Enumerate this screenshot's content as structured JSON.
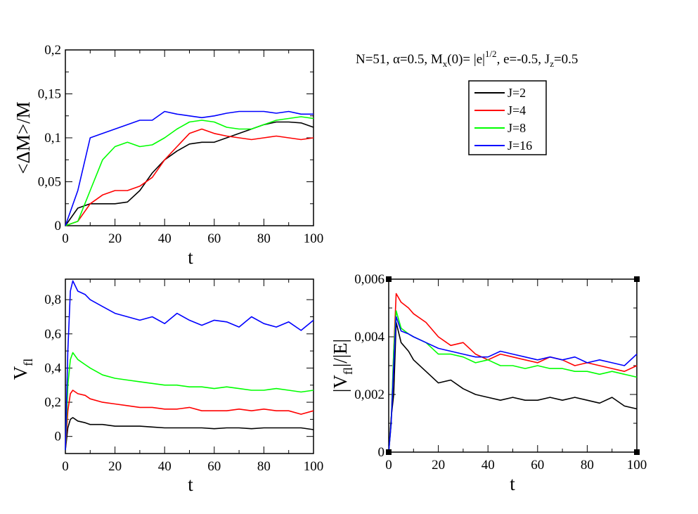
{
  "params_text": {
    "a": "N=51, ",
    "alpha": "α",
    "b": "=0.5, M",
    "sub_x": "x",
    "c": "(0)= |e|",
    "sup_half": "1/2",
    "d": ", e=-0.5, J",
    "sub_z": "z",
    "e": "=0.5"
  },
  "legend": [
    "J=2",
    "J=4",
    "J=8",
    "J=16"
  ],
  "colors": {
    "J2": "#000000",
    "J4": "#ff0000",
    "J8": "#00ff00",
    "J16": "#0000ff"
  },
  "chart_data": [
    {
      "type": "line",
      "xlabel": "t",
      "ylabel": "<ΔM>/M",
      "xlim": [
        0,
        100
      ],
      "ylim": [
        0,
        0.2
      ],
      "xticks": [
        "0",
        "20",
        "40",
        "60",
        "80",
        "100"
      ],
      "yticks": [
        "0",
        "0,05",
        "0,1",
        "0,15",
        "0,2"
      ],
      "x": [
        0,
        5,
        10,
        15,
        20,
        25,
        30,
        35,
        40,
        45,
        50,
        55,
        60,
        65,
        70,
        75,
        80,
        85,
        90,
        95,
        100
      ],
      "series": [
        {
          "name": "J=2",
          "values": [
            0,
            0.02,
            0.025,
            0.025,
            0.025,
            0.027,
            0.04,
            0.06,
            0.075,
            0.085,
            0.093,
            0.095,
            0.095,
            0.1,
            0.105,
            0.11,
            0.115,
            0.118,
            0.118,
            0.117,
            0.112
          ]
        },
        {
          "name": "J=4",
          "values": [
            0,
            0.005,
            0.025,
            0.035,
            0.04,
            0.04,
            0.045,
            0.055,
            0.075,
            0.09,
            0.105,
            0.11,
            0.105,
            0.102,
            0.1,
            0.098,
            0.1,
            0.102,
            0.1,
            0.098,
            0.1
          ]
        },
        {
          "name": "J=8",
          "values": [
            0,
            0.005,
            0.04,
            0.075,
            0.09,
            0.095,
            0.09,
            0.092,
            0.1,
            0.11,
            0.118,
            0.12,
            0.118,
            0.112,
            0.11,
            0.11,
            0.115,
            0.12,
            0.122,
            0.124,
            0.122
          ]
        },
        {
          "name": "J=16",
          "values": [
            0,
            0.04,
            0.1,
            0.105,
            0.11,
            0.115,
            0.12,
            0.12,
            0.13,
            0.127,
            0.125,
            0.123,
            0.125,
            0.128,
            0.13,
            0.13,
            0.13,
            0.128,
            0.13,
            0.127,
            0.127
          ]
        }
      ]
    },
    {
      "type": "line",
      "xlabel": "t",
      "ylabel": "V_fl",
      "xlim": [
        0,
        100
      ],
      "ylim": [
        -0.1,
        0.92
      ],
      "xticks": [
        "0",
        "20",
        "40",
        "60",
        "80",
        "100"
      ],
      "yticks": [
        "0",
        "0,2",
        "0,4",
        "0,6",
        "0,8"
      ],
      "x": [
        0,
        1,
        2,
        3,
        5,
        8,
        10,
        15,
        20,
        25,
        30,
        35,
        40,
        45,
        50,
        55,
        60,
        65,
        70,
        75,
        80,
        85,
        90,
        95,
        100
      ],
      "series": [
        {
          "name": "J=2",
          "values": [
            -0.08,
            0.05,
            0.1,
            0.11,
            0.09,
            0.08,
            0.07,
            0.07,
            0.06,
            0.06,
            0.06,
            0.055,
            0.05,
            0.05,
            0.05,
            0.05,
            0.045,
            0.05,
            0.05,
            0.045,
            0.05,
            0.05,
            0.05,
            0.05,
            0.04
          ]
        },
        {
          "name": "J=4",
          "values": [
            -0.08,
            0.15,
            0.25,
            0.27,
            0.25,
            0.24,
            0.22,
            0.2,
            0.19,
            0.18,
            0.17,
            0.17,
            0.16,
            0.16,
            0.17,
            0.15,
            0.15,
            0.15,
            0.16,
            0.15,
            0.16,
            0.15,
            0.15,
            0.13,
            0.15
          ]
        },
        {
          "name": "J=8",
          "values": [
            -0.08,
            0.3,
            0.45,
            0.49,
            0.45,
            0.42,
            0.4,
            0.36,
            0.34,
            0.33,
            0.32,
            0.31,
            0.3,
            0.3,
            0.29,
            0.29,
            0.28,
            0.29,
            0.28,
            0.27,
            0.27,
            0.28,
            0.27,
            0.26,
            0.27
          ]
        },
        {
          "name": "J=16",
          "values": [
            -0.08,
            0.5,
            0.85,
            0.91,
            0.85,
            0.83,
            0.8,
            0.76,
            0.72,
            0.7,
            0.68,
            0.7,
            0.66,
            0.72,
            0.68,
            0.65,
            0.68,
            0.67,
            0.64,
            0.7,
            0.66,
            0.64,
            0.67,
            0.62,
            0.68
          ]
        }
      ]
    },
    {
      "type": "line",
      "xlabel": "t",
      "ylabel": "|V_fl|/|E|",
      "xlim": [
        0,
        100
      ],
      "ylim": [
        0,
        0.006
      ],
      "xticks": [
        "0",
        "20",
        "40",
        "60",
        "80",
        "100"
      ],
      "yticks": [
        "0",
        "0,002",
        "0,004",
        "0,006"
      ],
      "x": [
        0,
        1,
        2,
        3,
        5,
        8,
        10,
        15,
        20,
        25,
        30,
        35,
        40,
        45,
        50,
        55,
        60,
        65,
        70,
        75,
        80,
        85,
        90,
        95,
        100
      ],
      "series": [
        {
          "name": "J=2",
          "values": [
            0,
            0.0012,
            0.002,
            0.0045,
            0.0038,
            0.0035,
            0.0032,
            0.0028,
            0.0024,
            0.0025,
            0.0022,
            0.002,
            0.0019,
            0.0018,
            0.0019,
            0.0018,
            0.0018,
            0.0019,
            0.0018,
            0.0019,
            0.0018,
            0.0017,
            0.0019,
            0.0016,
            0.0015
          ]
        },
        {
          "name": "J=4",
          "values": [
            0,
            0.001,
            0.0035,
            0.0055,
            0.0052,
            0.005,
            0.0048,
            0.0045,
            0.004,
            0.0037,
            0.0038,
            0.0034,
            0.0032,
            0.0034,
            0.0033,
            0.0032,
            0.0031,
            0.0033,
            0.0032,
            0.003,
            0.0031,
            0.003,
            0.0029,
            0.0028,
            0.003
          ]
        },
        {
          "name": "J=8",
          "values": [
            0,
            0.001,
            0.0035,
            0.0049,
            0.0043,
            0.0041,
            0.004,
            0.0038,
            0.0034,
            0.0034,
            0.0033,
            0.0031,
            0.0032,
            0.003,
            0.003,
            0.0029,
            0.003,
            0.0029,
            0.0029,
            0.0028,
            0.0028,
            0.0027,
            0.0028,
            0.0027,
            0.0026
          ]
        },
        {
          "name": "J=16",
          "values": [
            0,
            0.001,
            0.003,
            0.0047,
            0.0042,
            0.0041,
            0.004,
            0.0038,
            0.0036,
            0.0035,
            0.0034,
            0.0033,
            0.0033,
            0.0035,
            0.0034,
            0.0033,
            0.0032,
            0.0033,
            0.0032,
            0.0033,
            0.0031,
            0.0032,
            0.0031,
            0.003,
            0.0034
          ]
        }
      ]
    }
  ]
}
